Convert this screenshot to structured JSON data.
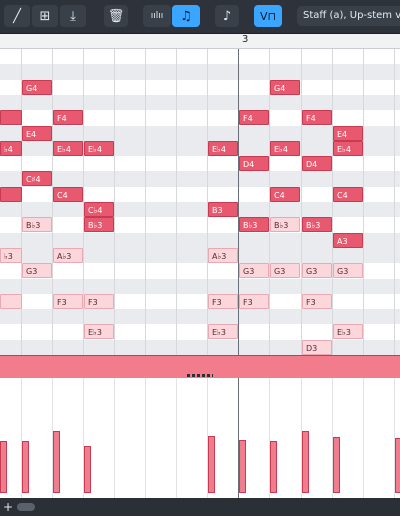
{
  "toolbar": {
    "tools": [
      {
        "name": "line-tool-icon",
        "glyph": "╱"
      },
      {
        "name": "select-box-icon",
        "glyph": "⊞"
      },
      {
        "name": "import-icon",
        "glyph": "⤓"
      },
      {
        "name": "delete-icon",
        "glyph": "🗑"
      },
      {
        "name": "waveform-icon",
        "glyph": "ıılıı"
      },
      {
        "name": "note-icon",
        "glyph": "♫"
      },
      {
        "name": "note-edit-icon",
        "glyph": "♪"
      },
      {
        "name": "voice-icon",
        "glyph": "V⊓"
      }
    ],
    "voice_label": "Staff (a), Up-stem voice"
  },
  "ruler": {
    "bar_number": "3"
  },
  "notes": [
    {
      "label": "G4",
      "row": 2,
      "col": 1,
      "style": "strong"
    },
    {
      "label": "G4",
      "row": 2,
      "col": 9,
      "style": "strong"
    },
    {
      "label": "",
      "row": 4,
      "col": 0,
      "style": "strong"
    },
    {
      "label": "F4",
      "row": 4,
      "col": 2,
      "style": "strong"
    },
    {
      "label": "F4",
      "row": 4,
      "col": 8,
      "style": "strong"
    },
    {
      "label": "F4",
      "row": 4,
      "col": 10,
      "style": "strong"
    },
    {
      "label": "E4",
      "row": 5,
      "col": 1,
      "style": "strong"
    },
    {
      "label": "E4",
      "row": 5,
      "col": 11,
      "style": "strong"
    },
    {
      "label": "♭4",
      "row": 6,
      "col": 0,
      "style": "strong"
    },
    {
      "label": "E♭4",
      "row": 6,
      "col": 2,
      "style": "strong"
    },
    {
      "label": "E♭4",
      "row": 6,
      "col": 3,
      "style": "strong"
    },
    {
      "label": "E♭4",
      "row": 6,
      "col": 7,
      "style": "strong"
    },
    {
      "label": "E♭4",
      "row": 6,
      "col": 9,
      "style": "strong"
    },
    {
      "label": "E♭4",
      "row": 6,
      "col": 11,
      "style": "strong"
    },
    {
      "label": "D4",
      "row": 7,
      "col": 8,
      "style": "strong"
    },
    {
      "label": "D4",
      "row": 7,
      "col": 10,
      "style": "strong"
    },
    {
      "label": "C♯4",
      "row": 8,
      "col": 1,
      "style": "strong"
    },
    {
      "label": "",
      "row": 9,
      "col": 0,
      "style": "strong"
    },
    {
      "label": "C4",
      "row": 9,
      "col": 2,
      "style": "strong"
    },
    {
      "label": "C4",
      "row": 9,
      "col": 9,
      "style": "strong"
    },
    {
      "label": "C4",
      "row": 9,
      "col": 11,
      "style": "strong"
    },
    {
      "label": "C♭4",
      "row": 10,
      "col": 3,
      "style": "strong"
    },
    {
      "label": "B3",
      "row": 10,
      "col": 7,
      "style": "strong"
    },
    {
      "label": "B♭3",
      "row": 11,
      "col": 1,
      "style": "light"
    },
    {
      "label": "B♭3",
      "row": 11,
      "col": 3,
      "style": "strong"
    },
    {
      "label": "B♭3",
      "row": 11,
      "col": 8,
      "style": "strong"
    },
    {
      "label": "B♭3",
      "row": 11,
      "col": 9,
      "style": "light"
    },
    {
      "label": "B♭3",
      "row": 11,
      "col": 10,
      "style": "strong"
    },
    {
      "label": "A3",
      "row": 12,
      "col": 11,
      "style": "strong"
    },
    {
      "label": "♭3",
      "row": 13,
      "col": 0,
      "style": "light"
    },
    {
      "label": "A♭3",
      "row": 13,
      "col": 2,
      "style": "light"
    },
    {
      "label": "A♭3",
      "row": 13,
      "col": 7,
      "style": "light"
    },
    {
      "label": "G3",
      "row": 14,
      "col": 1,
      "style": "light"
    },
    {
      "label": "G3",
      "row": 14,
      "col": 8,
      "style": "light"
    },
    {
      "label": "G3",
      "row": 14,
      "col": 9,
      "style": "light"
    },
    {
      "label": "G3",
      "row": 14,
      "col": 10,
      "style": "light"
    },
    {
      "label": "G3",
      "row": 14,
      "col": 11,
      "style": "light"
    },
    {
      "label": "",
      "row": 16,
      "col": 0,
      "style": "light"
    },
    {
      "label": "F3",
      "row": 16,
      "col": 2,
      "style": "light"
    },
    {
      "label": "F3",
      "row": 16,
      "col": 3,
      "style": "light"
    },
    {
      "label": "F3",
      "row": 16,
      "col": 7,
      "style": "light"
    },
    {
      "label": "F3",
      "row": 16,
      "col": 8,
      "style": "light"
    },
    {
      "label": "F3",
      "row": 16,
      "col": 10,
      "style": "light"
    },
    {
      "label": "E♭3",
      "row": 18,
      "col": 3,
      "style": "light"
    },
    {
      "label": "E♭3",
      "row": 18,
      "col": 7,
      "style": "light"
    },
    {
      "label": "E♭3",
      "row": 18,
      "col": 11,
      "style": "light"
    },
    {
      "label": "D3",
      "row": 19,
      "col": 10,
      "style": "light"
    }
  ],
  "velocities": [
    {
      "col": 0,
      "value": 0.52
    },
    {
      "col": 1,
      "value": 0.52
    },
    {
      "col": 2,
      "value": 0.62
    },
    {
      "col": 3,
      "value": 0.47
    },
    {
      "col": 7,
      "value": 0.57
    },
    {
      "col": 8,
      "value": 0.53
    },
    {
      "col": 9,
      "value": 0.52
    },
    {
      "col": 10,
      "value": 0.62
    },
    {
      "col": 11,
      "value": 0.56
    },
    {
      "col": 13,
      "value": 0.55
    }
  ],
  "colors": {
    "accent": "#3aa6ff",
    "note": "#e8596f",
    "note_light": "#fbd6db"
  }
}
